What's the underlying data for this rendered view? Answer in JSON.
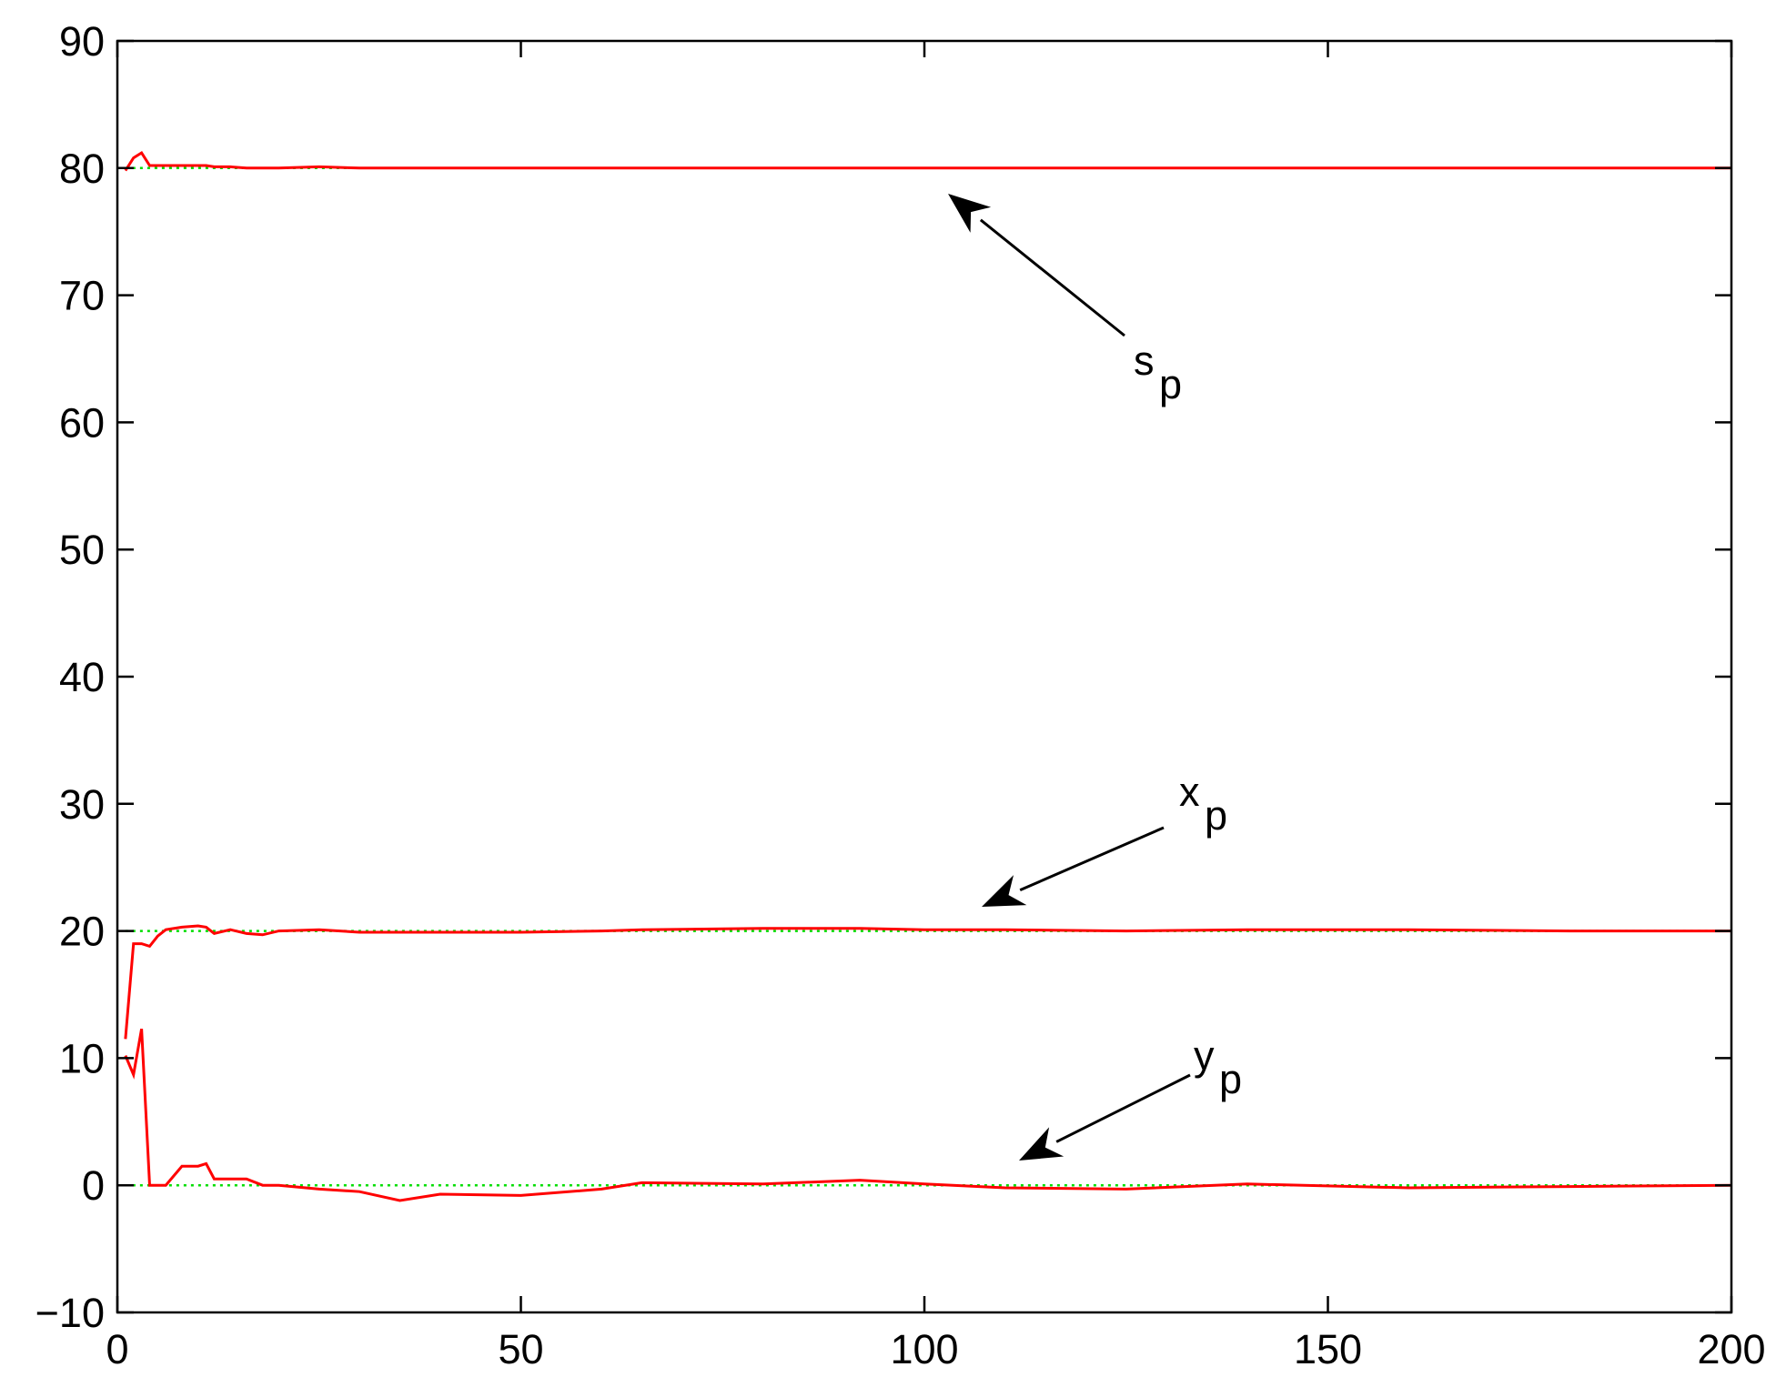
{
  "chart_data": {
    "type": "line",
    "x": [
      1,
      2,
      3,
      4,
      5,
      6,
      8,
      10,
      11,
      12,
      14,
      16,
      18,
      20,
      25,
      30,
      35,
      40,
      50,
      60,
      65,
      80,
      92,
      100,
      110,
      125,
      140,
      160,
      180,
      200
    ],
    "series": [
      {
        "color": "#ff0000",
        "values": [
          79.8,
          80.8,
          81.2,
          80.2,
          80.2,
          80.2,
          80.2,
          80.2,
          80.2,
          80.1,
          80.1,
          80,
          80,
          80,
          80.1,
          80,
          80,
          80,
          80,
          80,
          80,
          80,
          80,
          80,
          80,
          80,
          80,
          80,
          80,
          80
        ]
      },
      {
        "color": "#ff0000",
        "values": [
          11.5,
          19,
          19,
          18.8,
          19.6,
          20.1,
          20.3,
          20.4,
          20.3,
          19.8,
          20.1,
          19.8,
          19.7,
          20,
          20.1,
          19.9,
          19.9,
          19.9,
          19.9,
          20,
          20.1,
          20.2,
          20.2,
          20.1,
          20.1,
          20,
          20.1,
          20.1,
          20,
          20
        ]
      },
      {
        "color": "#ff0000",
        "values": [
          10.2,
          8.7,
          12.3,
          0,
          0,
          0,
          1.5,
          1.5,
          1.7,
          0.5,
          0.5,
          0.5,
          0,
          0,
          -0.3,
          -0.5,
          -1.2,
          -0.7,
          -0.8,
          -0.3,
          0.2,
          0.1,
          0.4,
          0.1,
          -0.2,
          -0.3,
          0.1,
          -0.2,
          -0.1,
          0
        ]
      }
    ],
    "reference_lines": [
      80,
      20,
      0
    ],
    "reference_color": "#00dd00",
    "annotations": [
      {
        "text": "s",
        "subscript": "p"
      },
      {
        "text": "x",
        "subscript": "p"
      },
      {
        "text": "y",
        "subscript": "p"
      }
    ],
    "xlim": [
      0,
      200
    ],
    "xticks": [
      0,
      50,
      100,
      150,
      200
    ],
    "ylim": [
      -10,
      90
    ],
    "yticks": [
      {
        "value": -10,
        "label": "−10"
      },
      0,
      10,
      20,
      30,
      40,
      50,
      60,
      70,
      80,
      90
    ],
    "grid": false
  }
}
